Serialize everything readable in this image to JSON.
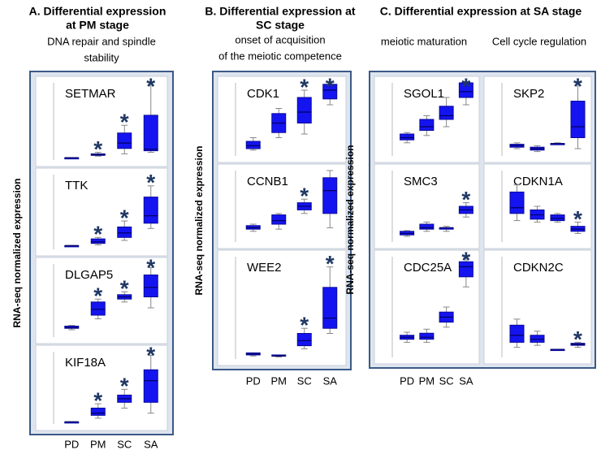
{
  "chart_data": [
    {
      "type": "box",
      "title": [
        "A.  Differential expression",
        "at PM stage"
      ],
      "subtitle": [
        "DNA repair and spindle",
        "stability"
      ],
      "ylabel": "RNA-seq normalized expression",
      "categories": [
        "PD",
        "PM",
        "SC",
        "SA"
      ],
      "ylim": [
        0,
        100
      ],
      "significance_marker": "*",
      "columns": [
        {
          "panels": [
            {
              "name": "SETMAR",
              "significant": [
                false,
                true,
                true,
                true
              ],
              "boxes": [
                {
                  "min": 3,
                  "q1": 3,
                  "median": 3,
                  "q3": 3,
                  "max": 3
                },
                {
                  "min": 5,
                  "q1": 6,
                  "median": 7,
                  "q3": 8,
                  "max": 10
                },
                {
                  "min": 8,
                  "q1": 15,
                  "median": 22,
                  "q3": 35,
                  "max": 45
                },
                {
                  "min": 10,
                  "q1": 12,
                  "median": 14,
                  "q3": 58,
                  "max": 100
                }
              ]
            },
            {
              "name": "TTK",
              "significant": [
                false,
                true,
                true,
                true
              ],
              "boxes": [
                {
                  "min": 5,
                  "q1": 5,
                  "median": 5,
                  "q3": 5,
                  "max": 5
                },
                {
                  "min": 6,
                  "q1": 8,
                  "median": 10,
                  "q3": 14,
                  "max": 16
                },
                {
                  "min": 12,
                  "q1": 16,
                  "median": 22,
                  "q3": 30,
                  "max": 38
                },
                {
                  "min": 28,
                  "q1": 35,
                  "median": 45,
                  "q3": 70,
                  "max": 85
                }
              ]
            },
            {
              "name": "DLGAP5",
              "significant": [
                false,
                true,
                true,
                true
              ],
              "boxes": [
                {
                  "min": 10,
                  "q1": 12,
                  "median": 13,
                  "q3": 15,
                  "max": 16
                },
                {
                  "min": 25,
                  "q1": 30,
                  "median": 38,
                  "q3": 48,
                  "max": 52
                },
                {
                  "min": 48,
                  "q1": 52,
                  "median": 55,
                  "q3": 58,
                  "max": 62
                },
                {
                  "min": 40,
                  "q1": 55,
                  "median": 68,
                  "q3": 85,
                  "max": 95
                }
              ]
            },
            {
              "name": "KIF18A",
              "significant": [
                false,
                true,
                true,
                true
              ],
              "boxes": [
                {
                  "min": 3,
                  "q1": 3,
                  "median": 3,
                  "q3": 3,
                  "max": 3
                },
                {
                  "min": 8,
                  "q1": 12,
                  "median": 15,
                  "q3": 22,
                  "max": 28
                },
                {
                  "min": 22,
                  "q1": 30,
                  "median": 35,
                  "q3": 40,
                  "max": 48
                },
                {
                  "min": 15,
                  "q1": 30,
                  "median": 60,
                  "q3": 75,
                  "max": 95
                }
              ]
            }
          ]
        }
      ]
    },
    {
      "type": "box",
      "title": [
        "B. Differential expression at",
        "SC stage"
      ],
      "subtitle": [
        "onset of acquisition",
        "of the meiotic competence"
      ],
      "ylabel": "RNA-seq normalized expression",
      "categories": [
        "PD",
        "PM",
        "SC",
        "SA"
      ],
      "ylim": [
        0,
        100
      ],
      "significance_marker": "*",
      "columns": [
        {
          "panels": [
            {
              "name": "CDK1",
              "significant": [
                false,
                false,
                true,
                true
              ],
              "boxes": [
                {
                  "min": 8,
                  "q1": 10,
                  "median": 14,
                  "q3": 20,
                  "max": 25
                },
                {
                  "min": 25,
                  "q1": 32,
                  "median": 45,
                  "q3": 58,
                  "max": 65
                },
                {
                  "min": 30,
                  "q1": 45,
                  "median": 60,
                  "q3": 80,
                  "max": 90
                },
                {
                  "min": 70,
                  "q1": 78,
                  "median": 90,
                  "q3": 98,
                  "max": 100
                }
              ]
            },
            {
              "name": "CCNB1",
              "significant": [
                false,
                false,
                true,
                false
              ],
              "boxes": [
                {
                  "min": 15,
                  "q1": 18,
                  "median": 20,
                  "q3": 23,
                  "max": 25
                },
                {
                  "min": 18,
                  "q1": 25,
                  "median": 30,
                  "q3": 38,
                  "max": 40
                },
                {
                  "min": 40,
                  "q1": 45,
                  "median": 50,
                  "q3": 55,
                  "max": 60
                },
                {
                  "min": 20,
                  "q1": 40,
                  "median": 72,
                  "q3": 90,
                  "max": 100
                }
              ]
            },
            {
              "name": "WEE2",
              "significant": [
                false,
                false,
                true,
                true
              ],
              "boxes": [
                {
                  "min": 3,
                  "q1": 4,
                  "median": 5,
                  "q3": 6,
                  "max": 6
                },
                {
                  "min": 2,
                  "q1": 3,
                  "median": 3,
                  "q3": 4,
                  "max": 4
                },
                {
                  "min": 10,
                  "q1": 13,
                  "median": 18,
                  "q3": 25,
                  "max": 30
                },
                {
                  "min": 25,
                  "q1": 30,
                  "median": 40,
                  "q3": 70,
                  "max": 90
                }
              ]
            }
          ]
        }
      ]
    },
    {
      "type": "box",
      "title": [
        "C. Differential expression at SA stage"
      ],
      "ylabel": "RNA-seq normalized expression",
      "categories": [
        "PD",
        "PM",
        "SC",
        "SA"
      ],
      "ylim": [
        0,
        100
      ],
      "significance_marker": "*",
      "columns": [
        {
          "subtitle": "meiotic maturation",
          "panels": [
            {
              "name": "SGOL1",
              "significant": [
                false,
                false,
                false,
                true
              ],
              "boxes": [
                {
                  "min": 18,
                  "q1": 22,
                  "median": 25,
                  "q3": 30,
                  "max": 32
                },
                {
                  "min": 28,
                  "q1": 35,
                  "median": 40,
                  "q3": 50,
                  "max": 55
                },
                {
                  "min": 40,
                  "q1": 50,
                  "median": 55,
                  "q3": 68,
                  "max": 80
                },
                {
                  "min": 70,
                  "q1": 80,
                  "median": 88,
                  "q3": 100,
                  "max": 100
                }
              ]
            },
            {
              "name": "SMC3",
              "significant": [
                false,
                false,
                false,
                true
              ],
              "boxes": [
                {
                  "min": 8,
                  "q1": 10,
                  "median": 12,
                  "q3": 15,
                  "max": 16
                },
                {
                  "min": 15,
                  "q1": 18,
                  "median": 20,
                  "q3": 25,
                  "max": 28
                },
                {
                  "min": 15,
                  "q1": 18,
                  "median": 20,
                  "q3": 20,
                  "max": 22
                },
                {
                  "min": 35,
                  "q1": 40,
                  "median": 45,
                  "q3": 50,
                  "max": 55
                }
              ]
            },
            {
              "name": "CDC25A",
              "significant": [
                false,
                false,
                false,
                true
              ],
              "boxes": [
                {
                  "min": 15,
                  "q1": 18,
                  "median": 20,
                  "q3": 22,
                  "max": 25
                },
                {
                  "min": 15,
                  "q1": 18,
                  "median": 20,
                  "q3": 24,
                  "max": 28
                },
                {
                  "min": 30,
                  "q1": 35,
                  "median": 40,
                  "q3": 45,
                  "max": 50
                },
                {
                  "min": 70,
                  "q1": 80,
                  "median": 90,
                  "q3": 95,
                  "max": 100
                }
              ]
            }
          ]
        },
        {
          "subtitle": "Cell cycle regulation",
          "panels": [
            {
              "name": "SKP2",
              "significant": [
                false,
                false,
                false,
                true
              ],
              "boxes": [
                {
                  "min": 10,
                  "q1": 12,
                  "median": 14,
                  "q3": 16,
                  "max": 18
                },
                {
                  "min": 6,
                  "q1": 8,
                  "median": 10,
                  "q3": 12,
                  "max": 14
                },
                {
                  "min": 16,
                  "q1": 16,
                  "median": 17,
                  "q3": 17,
                  "max": 18
                },
                {
                  "min": 10,
                  "q1": 25,
                  "median": 40,
                  "q3": 75,
                  "max": 100
                }
              ]
            },
            {
              "name": "CDKN1A",
              "significant": [
                false,
                false,
                false,
                true
              ],
              "boxes": [
                {
                  "min": 30,
                  "q1": 40,
                  "median": 48,
                  "q3": 70,
                  "max": 80
                },
                {
                  "min": 28,
                  "q1": 32,
                  "median": 38,
                  "q3": 45,
                  "max": 50
                },
                {
                  "min": 28,
                  "q1": 30,
                  "median": 33,
                  "q3": 38,
                  "max": 40
                },
                {
                  "min": 12,
                  "q1": 15,
                  "median": 18,
                  "q3": 22,
                  "max": 28
                }
              ]
            },
            {
              "name": "CDKN2C",
              "significant": [
                false,
                false,
                false,
                true
              ],
              "boxes": [
                {
                  "min": 10,
                  "q1": 15,
                  "median": 22,
                  "q3": 32,
                  "max": 38
                },
                {
                  "min": 12,
                  "q1": 15,
                  "median": 18,
                  "q3": 22,
                  "max": 26
                },
                {
                  "min": 8,
                  "q1": 8,
                  "median": 8,
                  "q3": 8,
                  "max": 8
                },
                {
                  "min": 10,
                  "q1": 12,
                  "median": 13,
                  "q3": 14,
                  "max": 15
                }
              ]
            }
          ]
        }
      ]
    }
  ]
}
